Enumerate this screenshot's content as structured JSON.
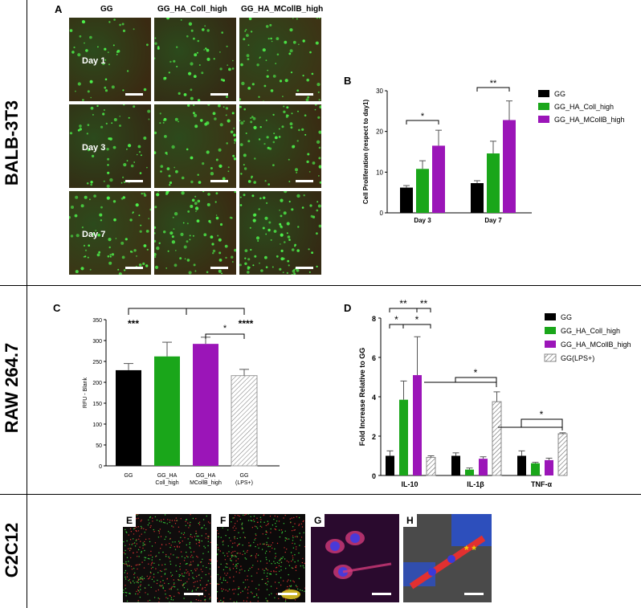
{
  "row_labels": [
    "BALB-3T3",
    "RAW 264.7",
    "C2C12"
  ],
  "panel_A": {
    "letter": "A",
    "columns": [
      "GG",
      "GG_HA_Coll_high",
      "GG_HA_MCollB_high"
    ],
    "days": [
      "Day 1",
      "Day 3",
      "Day 7"
    ]
  },
  "panel_B": {
    "letter": "B",
    "ylabel": "Cell Proliferation (respect to day1)",
    "yticks": [
      "0",
      "10",
      "20",
      "30"
    ],
    "legend": [
      "GG",
      "GG_HA_Coll_high",
      "GG_HA_MCollB_high"
    ],
    "sig": [
      "*",
      "**"
    ]
  },
  "panel_C": {
    "letter": "C",
    "ylabel": "RFU - Blank",
    "yticks": [
      "0",
      "50",
      "100",
      "150",
      "200",
      "250",
      "300",
      "350"
    ],
    "sig": [
      "***",
      "****",
      "*"
    ]
  },
  "panel_D": {
    "letter": "D",
    "ylabel": "Fold Increase Relative to GG",
    "yticks": [
      "0",
      "2",
      "4",
      "6",
      "8"
    ],
    "legend": [
      "GG",
      "GG_HA_Coll_high",
      "GG_HA_MCollB_high",
      "GG(LPS+)"
    ],
    "sig": [
      "**",
      "**",
      "*",
      "*",
      "*",
      "*"
    ]
  },
  "panel_EFGH": {
    "letters": [
      "E",
      "F",
      "G",
      "H"
    ],
    "stars": "* *"
  },
  "colors": {
    "gg": "#000000",
    "coll": "#1aa61a",
    "mcoll": "#9b15b8",
    "lps": "#ffffff",
    "error": "#555555"
  },
  "chart_data": [
    {
      "type": "bar",
      "title": "",
      "xlabel": "",
      "ylabel": "Cell Proliferation (respect to day1)",
      "ylim": [
        0,
        30
      ],
      "categories": [
        "Day 3",
        "Day 7"
      ],
      "series": [
        {
          "name": "GG",
          "values": [
            6.2,
            7.3
          ],
          "errors": [
            0.5,
            0.6
          ]
        },
        {
          "name": "GG_HA_Coll_high",
          "values": [
            10.8,
            14.6
          ],
          "errors": [
            2.0,
            3.0
          ]
        },
        {
          "name": "GG_HA_MCollB_high",
          "values": [
            16.5,
            22.8
          ],
          "errors": [
            3.8,
            4.7
          ]
        }
      ]
    },
    {
      "type": "bar",
      "title": "",
      "xlabel": "",
      "ylabel": "RFU - Blank",
      "ylim": [
        0,
        350
      ],
      "categories": [
        "GG",
        "GG_HA Coll_high",
        "GG_HA MCollB_high",
        "GG (LPS+)"
      ],
      "values": [
        229,
        262,
        292,
        216
      ],
      "errors": [
        16,
        34,
        16,
        15
      ]
    },
    {
      "type": "bar",
      "title": "",
      "xlabel": "",
      "ylabel": "Fold Increase Relative to GG",
      "ylim": [
        0,
        8
      ],
      "categories": [
        "IL-10",
        "IL-1β",
        "TNF-α"
      ],
      "series": [
        {
          "name": "GG",
          "values": [
            1.0,
            1.0,
            1.0
          ],
          "errors": [
            0.25,
            0.15,
            0.25
          ]
        },
        {
          "name": "GG_HA_Coll_high",
          "values": [
            3.85,
            0.3,
            0.62
          ],
          "errors": [
            0.95,
            0.08,
            0.05
          ]
        },
        {
          "name": "GG_HA_MCollB_high",
          "values": [
            5.1,
            0.85,
            0.78
          ],
          "errors": [
            1.95,
            0.1,
            0.1
          ]
        },
        {
          "name": "GG(LPS+)",
          "values": [
            0.92,
            3.75,
            2.12
          ],
          "errors": [
            0.08,
            0.5,
            0.05
          ]
        }
      ]
    }
  ]
}
